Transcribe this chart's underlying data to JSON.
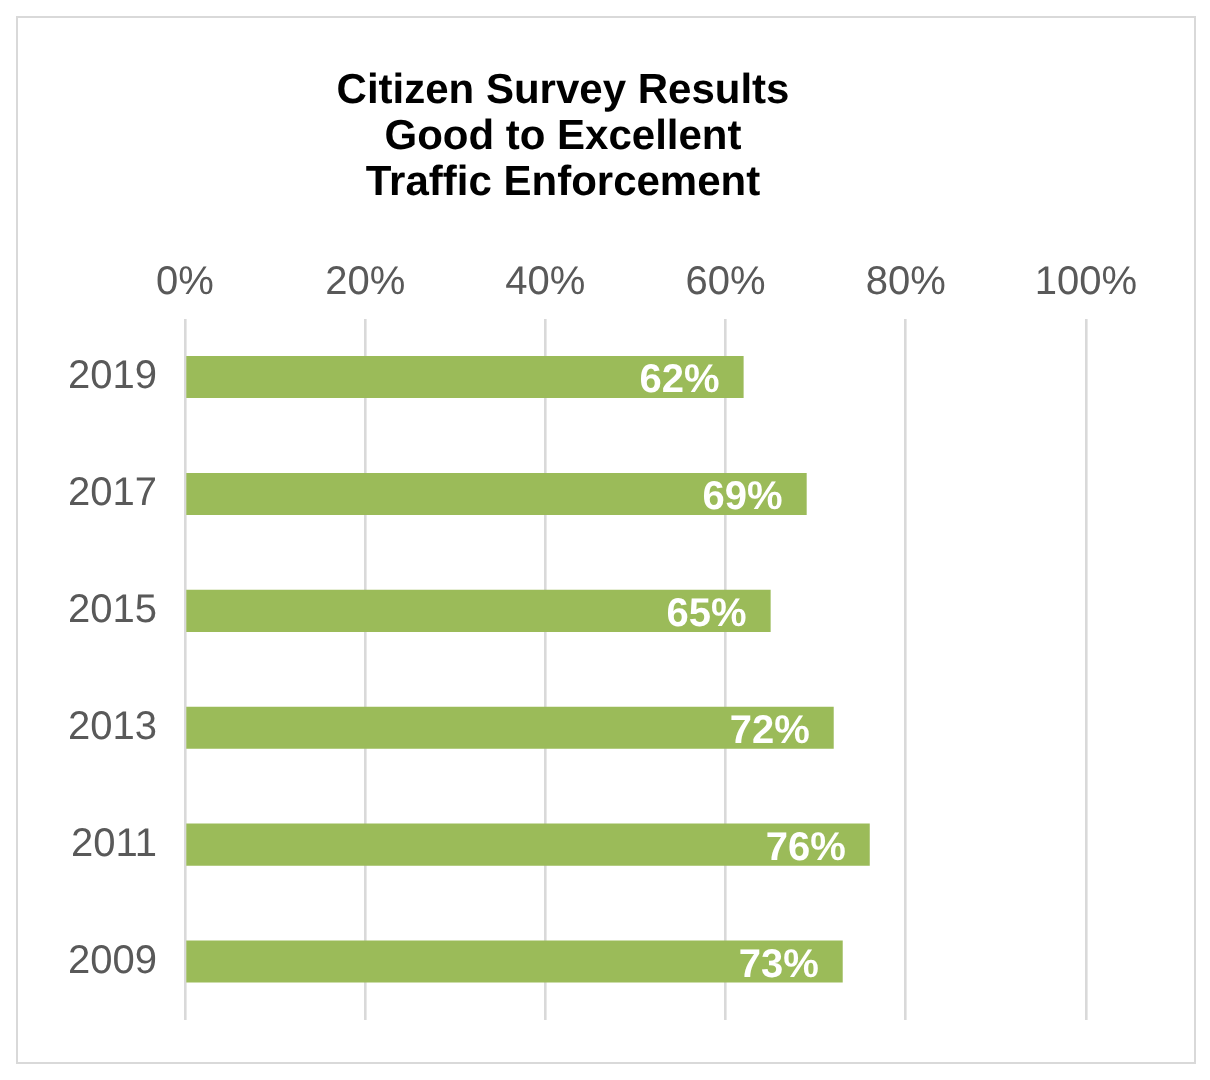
{
  "chart_data": {
    "type": "bar",
    "orientation": "horizontal",
    "title": "Citizen Survey Results\nGood to Excellent\nTraffic Enforcement",
    "categories": [
      "2019",
      "2017",
      "2015",
      "2013",
      "2011",
      "2009"
    ],
    "values": [
      62,
      69,
      65,
      72,
      76,
      73
    ],
    "value_labels": [
      "62%",
      "69%",
      "65%",
      "72%",
      "76%",
      "73%"
    ],
    "color": "#9bbb59",
    "xlim": [
      0,
      100
    ],
    "xticks": [
      {
        "value": 0,
        "label": "0%"
      },
      {
        "value": 20,
        "label": "20%"
      },
      {
        "value": 40,
        "label": "40%"
      },
      {
        "value": 60,
        "label": "60%"
      },
      {
        "value": 80,
        "label": "80%"
      },
      {
        "value": 100,
        "label": "100%"
      }
    ],
    "grid": "x",
    "legend": false
  }
}
